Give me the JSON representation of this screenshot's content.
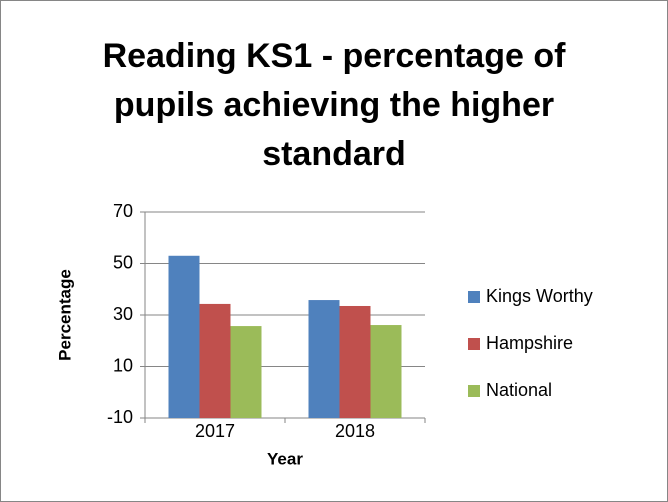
{
  "chart_data": {
    "type": "bar",
    "title": "Reading KS1 - percentage of pupils achieving the higher standard",
    "x_label": "Year",
    "y_label": "Percentage",
    "categories": [
      "2017",
      "2018"
    ],
    "series": [
      {
        "name": "Kings Worthy",
        "color": "#4f81bd",
        "values": [
          53,
          35.8
        ]
      },
      {
        "name": "Hampshire",
        "color": "#c0504d",
        "values": [
          34.3,
          33.5
        ]
      },
      {
        "name": "National",
        "color": "#9bbb59",
        "values": [
          25.7,
          26.1
        ]
      }
    ],
    "ylim": [
      -10,
      70
    ],
    "yticks": [
      -10,
      10,
      30,
      50,
      70
    ],
    "grid": true,
    "legend": "right"
  }
}
